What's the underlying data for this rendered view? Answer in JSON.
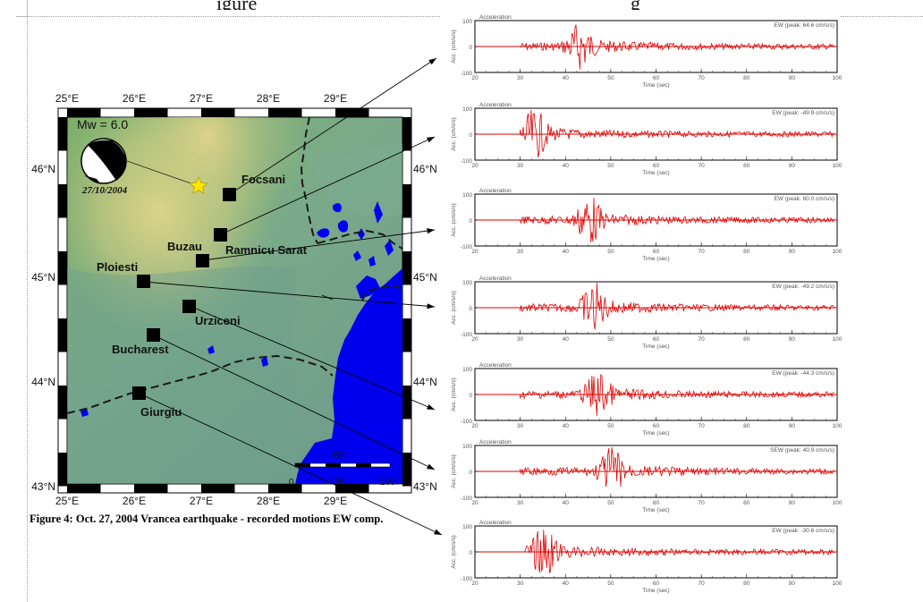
{
  "header_fragment": {
    "left": "igure",
    "right": "g"
  },
  "caption": "Figure 4: Oct. 27, 2004 Vrancea earthquake - recorded motions EW comp.",
  "map": {
    "lon_ticks": [
      "25°E",
      "26°E",
      "27°E",
      "28°E",
      "29°E"
    ],
    "lat_ticks": [
      "46°N",
      "45°N",
      "44°N",
      "43°N"
    ],
    "magnitude": "Mw = 6.0",
    "event_date": "27/10/2004",
    "scale_unit": "km",
    "scale_ticks": [
      "0",
      "50",
      "100"
    ],
    "cities": [
      {
        "name": "Focsani",
        "lon": 27.18,
        "lat": 45.7
      },
      {
        "name": "Buzau",
        "lon": 26.82,
        "lat": 45.15
      },
      {
        "name": "Ramnicu Sarat",
        "lon": 27.05,
        "lat": 45.38
      },
      {
        "name": "Ploiesti",
        "lon": 26.02,
        "lat": 44.94
      },
      {
        "name": "Urziceni",
        "lon": 26.64,
        "lat": 44.71
      },
      {
        "name": "Bucharest",
        "lon": 26.1,
        "lat": 44.44
      },
      {
        "name": "Giurgiu",
        "lon": 25.97,
        "lat": 43.9
      }
    ],
    "epicenter": {
      "lon": 26.7,
      "lat": 45.77
    },
    "colors": {
      "sea": "#0000ee",
      "border": "#1a1a1a",
      "station": "#000000",
      "epicenter": "#ffe600"
    }
  },
  "plots": [
    {
      "station": "Focsani",
      "title": "Acceleration",
      "legend": "EW (peak: 64.6 cm/s/s)",
      "peak_time": 43
    },
    {
      "station": "Ramnicu Sarat",
      "title": "Acceleration",
      "legend": "EW (peak: -49.9 cm/s/s)",
      "peak_time": 33
    },
    {
      "station": "Buzau",
      "title": "Acceleration",
      "legend": "EW (peak: 80.0 cm/s/s)",
      "peak_time": 45
    },
    {
      "station": "Ploiesti",
      "title": "Acceleration",
      "legend": "EW (peak: -49.2 cm/s/s)",
      "peak_time": 46
    },
    {
      "station": "Urziceni",
      "title": "Acceleration",
      "legend": "EW (peak: -44.3 cm/s/s)",
      "peak_time": 47
    },
    {
      "station": "Bucharest",
      "title": "Acceleration",
      "legend": "SEW (peak: 40.9 cm/s/s)",
      "peak_time": 50
    },
    {
      "station": "Giurgiu",
      "title": "Acceleration",
      "legend": "EW (peak: -30.6 cm/s/s)",
      "peak_time": 35
    }
  ],
  "plot_axes": {
    "ylabel": "Acc. (cm/s/s)",
    "xlabel": "Time (sec)",
    "y_ticks": [
      "100",
      "0",
      "-100"
    ],
    "x_ticks": [
      "20",
      "30",
      "40",
      "50",
      "60",
      "70",
      "80",
      "90",
      "100"
    ],
    "trace_color": "#e00000"
  }
}
